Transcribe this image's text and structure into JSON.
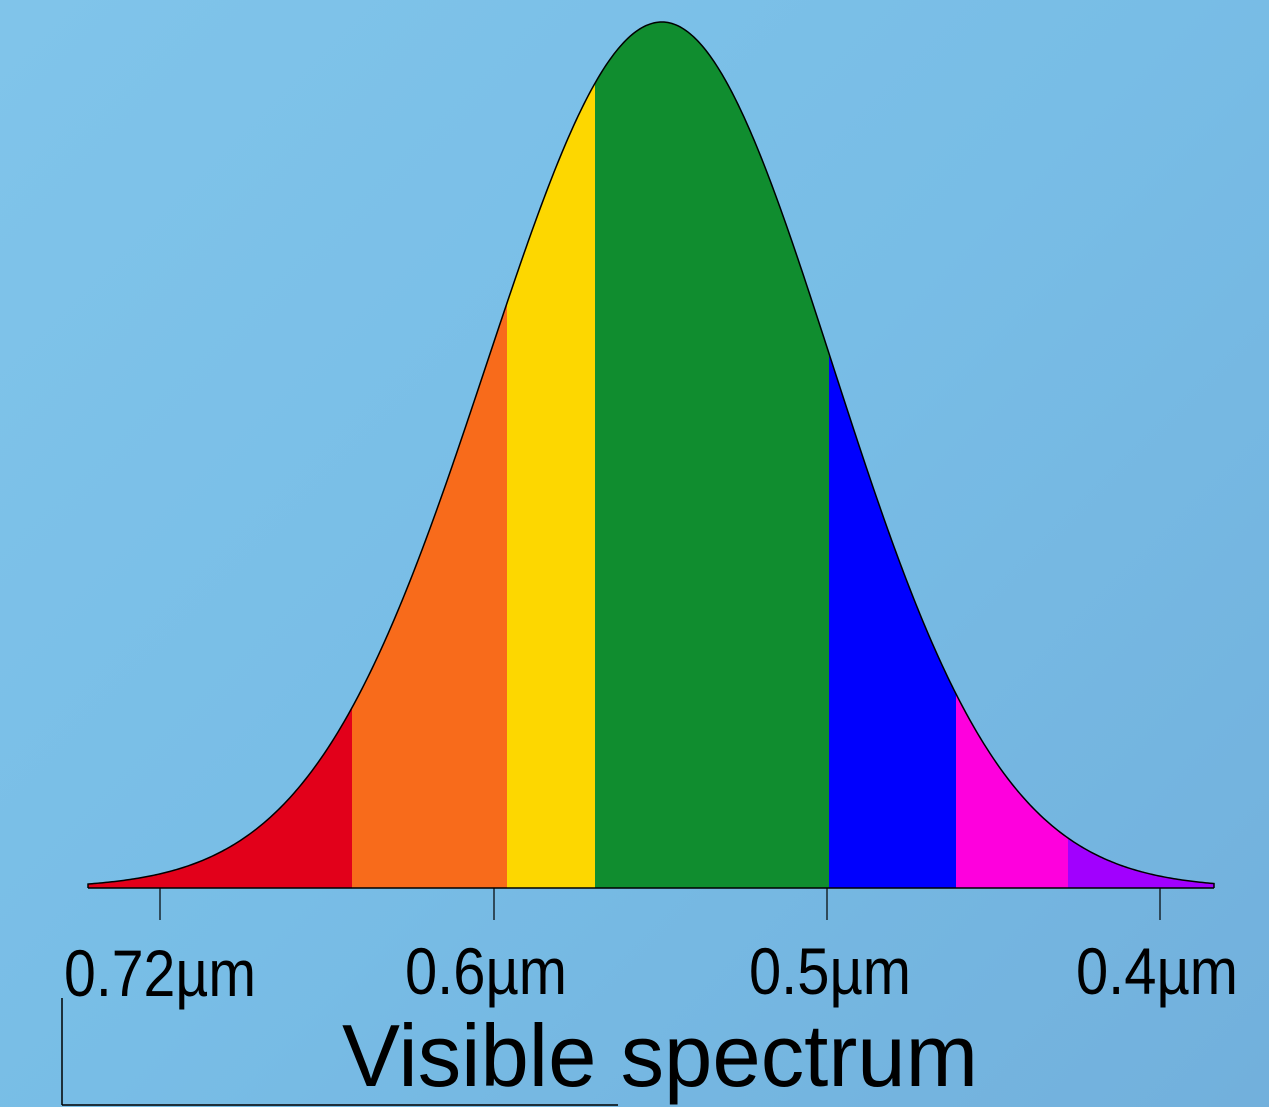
{
  "title": "Visible spectrum",
  "unit": "µm",
  "axis": {
    "ticks": [
      {
        "value": 0.72,
        "label": "0.72µm"
      },
      {
        "value": 0.6,
        "label": "0.6µm"
      },
      {
        "value": 0.5,
        "label": "0.5µm"
      },
      {
        "value": 0.4,
        "label": "0.4µm"
      }
    ]
  },
  "curve": {
    "shape": "bell",
    "outline_color": "#000000"
  },
  "bands": [
    {
      "name": "red",
      "color": "#e2001a"
    },
    {
      "name": "orange",
      "color": "#f86b1b"
    },
    {
      "name": "yellow",
      "color": "#fdd700"
    },
    {
      "name": "green",
      "color": "#108d2f"
    },
    {
      "name": "blue",
      "color": "#0000fe"
    },
    {
      "name": "magenta",
      "color": "#fe00dd"
    },
    {
      "name": "violet",
      "color": "#a100fe"
    }
  ],
  "colors": {
    "background_light": "#80c4ea",
    "background_dark": "#72b0dc"
  }
}
